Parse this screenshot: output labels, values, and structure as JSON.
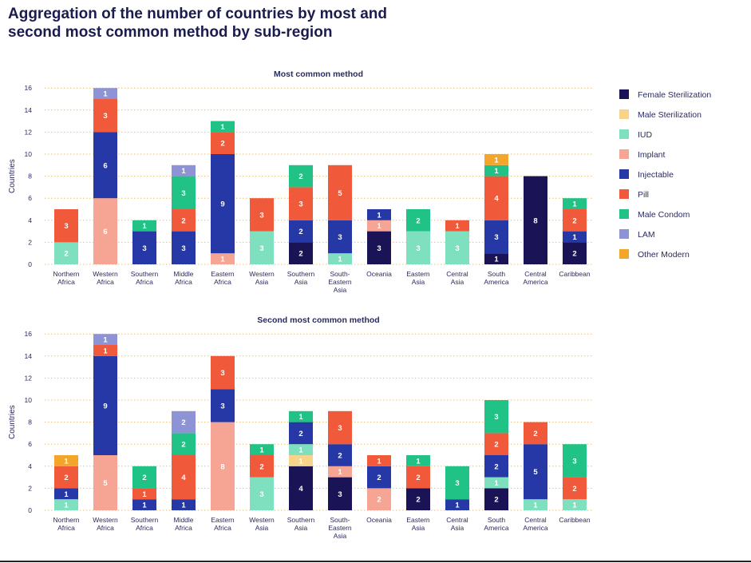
{
  "page_title_line1": "Aggregation of the number of countries by most and",
  "page_title_line2": "second most common method by sub-region",
  "legend": [
    {
      "name": "Female Sterilization",
      "color": "#1a1457"
    },
    {
      "name": "Male Sterilization",
      "color": "#f7d48a"
    },
    {
      "name": "IUD",
      "color": "#7fe0c0"
    },
    {
      "name": "Implant",
      "color": "#f6a493"
    },
    {
      "name": "Injectable",
      "color": "#2637a6"
    },
    {
      "name": "Pill",
      "color": "#f0593a"
    },
    {
      "name": "Male Condom",
      "color": "#20c285"
    },
    {
      "name": "LAM",
      "color": "#8e93d6"
    },
    {
      "name": "Other Modern",
      "color": "#f4a62a"
    }
  ],
  "chart_data": [
    {
      "type": "bar",
      "stacked": true,
      "title": "Most common method",
      "ylabel": "Countries",
      "xlabel": "",
      "ylim": [
        0,
        16
      ],
      "yticks": [
        0,
        2,
        4,
        6,
        8,
        10,
        12,
        14,
        16
      ],
      "grid": "dotted horizontal",
      "legend_position": "right",
      "categories": [
        [
          "Northern",
          "Africa"
        ],
        [
          "Western",
          "Africa"
        ],
        [
          "Southern",
          "Africa"
        ],
        [
          "Middle",
          "Africa"
        ],
        [
          "Eastern",
          "Africa"
        ],
        [
          "Western",
          "Asia"
        ],
        [
          "Southern",
          "Asia"
        ],
        [
          "South-",
          "Eastern",
          "Asia"
        ],
        [
          "Oceania"
        ],
        [
          "Eastern",
          "Asia"
        ],
        [
          "Central",
          "Asia"
        ],
        [
          "South",
          "America"
        ],
        [
          "Central",
          "America"
        ],
        [
          "Caribbean"
        ]
      ],
      "series": [
        {
          "name": "Female Sterilization",
          "values": [
            0,
            0,
            0,
            0,
            0,
            0,
            2,
            0,
            3,
            0,
            0,
            1,
            8,
            2
          ]
        },
        {
          "name": "Male Sterilization",
          "values": [
            0,
            0,
            0,
            0,
            0,
            0,
            0,
            0,
            0,
            0,
            0,
            0,
            0,
            0
          ]
        },
        {
          "name": "IUD",
          "values": [
            2,
            0,
            0,
            0,
            0,
            3,
            0,
            1,
            0,
            3,
            3,
            0,
            0,
            0
          ]
        },
        {
          "name": "Implant",
          "values": [
            0,
            6,
            0,
            0,
            1,
            0,
            0,
            0,
            1,
            0,
            0,
            0,
            0,
            0
          ]
        },
        {
          "name": "Injectable",
          "values": [
            0,
            6,
            3,
            3,
            9,
            0,
            2,
            3,
            1,
            0,
            0,
            3,
            0,
            1
          ]
        },
        {
          "name": "Pill",
          "values": [
            3,
            3,
            0,
            2,
            2,
            3,
            3,
            5,
            0,
            0,
            1,
            4,
            0,
            2
          ]
        },
        {
          "name": "Male Condom",
          "values": [
            0,
            0,
            1,
            3,
            1,
            0,
            2,
            0,
            0,
            2,
            0,
            1,
            0,
            1
          ]
        },
        {
          "name": "LAM",
          "values": [
            0,
            1,
            0,
            1,
            0,
            0,
            0,
            0,
            0,
            0,
            0,
            0,
            0,
            0
          ]
        },
        {
          "name": "Other Modern",
          "values": [
            0,
            0,
            0,
            0,
            0,
            0,
            0,
            0,
            0,
            0,
            0,
            1,
            0,
            0
          ]
        }
      ]
    },
    {
      "type": "bar",
      "stacked": true,
      "title": "Second most common method",
      "ylabel": "Countries",
      "xlabel": "",
      "ylim": [
        0,
        16
      ],
      "yticks": [
        0,
        2,
        4,
        6,
        8,
        10,
        12,
        14,
        16
      ],
      "grid": "dotted horizontal",
      "legend_position": "right",
      "categories": [
        [
          "Northern",
          "Africa"
        ],
        [
          "Western",
          "Africa"
        ],
        [
          "Southern",
          "Africa"
        ],
        [
          "Middle",
          "Africa"
        ],
        [
          "Eastern",
          "Africa"
        ],
        [
          "Western",
          "Asia"
        ],
        [
          "Southern",
          "Asia"
        ],
        [
          "South-",
          "Eastern",
          "Asia"
        ],
        [
          "Oceania"
        ],
        [
          "Eastern",
          "Asia"
        ],
        [
          "Central",
          "Asia"
        ],
        [
          "South",
          "America"
        ],
        [
          "Central",
          "America"
        ],
        [
          "Caribbean"
        ]
      ],
      "series": [
        {
          "name": "Female Sterilization",
          "values": [
            0,
            0,
            0,
            0,
            0,
            0,
            4,
            3,
            0,
            2,
            0,
            2,
            0,
            0
          ]
        },
        {
          "name": "Male Sterilization",
          "values": [
            0,
            0,
            0,
            0,
            0,
            0,
            1,
            0,
            0,
            0,
            0,
            0,
            0,
            0
          ]
        },
        {
          "name": "IUD",
          "values": [
            1,
            0,
            0,
            0,
            0,
            3,
            1,
            0,
            0,
            0,
            0,
            1,
            1,
            1
          ]
        },
        {
          "name": "Implant",
          "values": [
            0,
            5,
            0,
            0,
            8,
            0,
            0,
            1,
            2,
            0,
            0,
            0,
            0,
            0
          ]
        },
        {
          "name": "Injectable",
          "values": [
            1,
            9,
            1,
            1,
            3,
            0,
            2,
            2,
            2,
            0,
            1,
            2,
            5,
            0
          ]
        },
        {
          "name": "Pill",
          "values": [
            2,
            1,
            1,
            4,
            3,
            2,
            0,
            3,
            1,
            2,
            0,
            2,
            2,
            2
          ]
        },
        {
          "name": "Male Condom",
          "values": [
            0,
            0,
            2,
            2,
            0,
            1,
            1,
            0,
            0,
            1,
            3,
            3,
            0,
            3
          ]
        },
        {
          "name": "LAM",
          "values": [
            0,
            1,
            0,
            2,
            0,
            0,
            0,
            0,
            0,
            0,
            0,
            0,
            0,
            0
          ]
        },
        {
          "name": "Other Modern",
          "values": [
            1,
            0,
            0,
            0,
            0,
            0,
            0,
            0,
            0,
            0,
            0,
            0,
            0,
            0
          ]
        }
      ]
    }
  ]
}
